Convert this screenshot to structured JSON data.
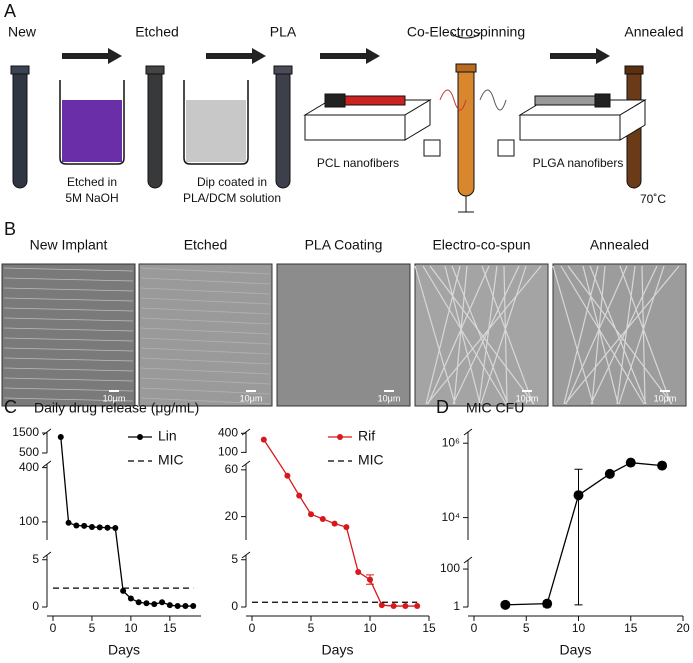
{
  "figure": {
    "panel_a": {
      "letter": "A",
      "steps": [
        "New",
        "Etched",
        "PLA",
        "Co-Electrospinning",
        "Annealed"
      ],
      "notes": [
        [
          "Etched in",
          "5M NaOH"
        ],
        [
          "Dip coated in",
          "PLA/DCM solution"
        ]
      ],
      "fibers": [
        "PCL nanofibers",
        "PLGA nanofibers"
      ],
      "temperature": "70˚C"
    },
    "panel_b": {
      "letter": "B",
      "images": [
        "New Implant",
        "Etched",
        "PLA Coating",
        "Electro-co-spun",
        "Annealed"
      ],
      "scale_bar": "10μm"
    },
    "panel_c": {
      "letter": "C",
      "title": "Daily drug release (μg/mL)"
    },
    "panel_d": {
      "letter": "D",
      "title": "MIC CFU"
    }
  },
  "chart_data": [
    {
      "type": "line",
      "x_label": "Days",
      "xlim": [
        0,
        19
      ],
      "xticks": [
        0,
        5,
        10,
        15
      ],
      "segments": [
        {
          "ylim": [
            0,
            5.5
          ],
          "yticks": [
            0,
            5
          ]
        },
        {
          "ylim": [
            0,
            420
          ],
          "yticks": [
            100,
            400
          ]
        },
        {
          "ylim": [
            500,
            1550
          ],
          "yticks": [
            500,
            1500
          ]
        }
      ],
      "series": [
        {
          "name": "Lin",
          "color": "#000000",
          "x": [
            1,
            2,
            3,
            4,
            5,
            6,
            7,
            8,
            9,
            10,
            11,
            12,
            13,
            14,
            15,
            16,
            17,
            18
          ],
          "values": [
            1300,
            95,
            80,
            78,
            72,
            70,
            68,
            66,
            1.7,
            0.9,
            0.5,
            0.4,
            0.3,
            0.5,
            0.2,
            0.1,
            0.1,
            0.1
          ]
        },
        {
          "name": "MIC",
          "color": "#000000",
          "dashed": true,
          "x": [
            0,
            18
          ],
          "values": [
            2,
            2
          ]
        }
      ]
    },
    {
      "type": "line",
      "x_label": "Days",
      "xlim": [
        0,
        15
      ],
      "xticks": [
        0,
        5,
        10,
        15
      ],
      "segments": [
        {
          "ylim": [
            0,
            5.5
          ],
          "yticks": [
            0,
            5
          ]
        },
        {
          "ylim": [
            0,
            65
          ],
          "yticks": [
            20,
            60
          ]
        },
        {
          "ylim": [
            90,
            420
          ],
          "yticks": [
            100,
            400
          ]
        }
      ],
      "series": [
        {
          "name": "Rif",
          "color": "#d7191c",
          "x": [
            1,
            3,
            4,
            5,
            6,
            7,
            8,
            9,
            10,
            11,
            12,
            13,
            14
          ],
          "values": [
            300,
            55,
            38,
            22,
            18,
            14,
            11,
            3.7,
            2.9,
            0.2,
            0.1,
            0.1,
            0.1
          ]
        },
        {
          "name": "MIC",
          "color": "#000000",
          "dashed": true,
          "x": [
            0,
            14
          ],
          "values": [
            0.5,
            0.5
          ]
        }
      ],
      "error_bars": [
        {
          "x": 10,
          "low": 2.4,
          "high": 3.4
        }
      ]
    },
    {
      "type": "line",
      "x_label": "Days",
      "xlim": [
        0,
        20
      ],
      "xticks": [
        0,
        5,
        10,
        15,
        20
      ],
      "log_scale": true,
      "segments": [
        {
          "ylim": [
            1,
            300
          ],
          "yticks": [
            1,
            100
          ]
        },
        {
          "ylim": [
            2500,
            2000000
          ],
          "yticks": [
            {
              "value": 10000,
              "label": "10⁴"
            },
            {
              "value": 1000000,
              "label": "10⁶"
            }
          ]
        }
      ],
      "series": [
        {
          "color": "#000000",
          "x": [
            3,
            7,
            10,
            13,
            15,
            18
          ],
          "values": [
            1.3,
            1.5,
            40000,
            150000,
            300000,
            250000
          ]
        }
      ],
      "error_bars": [
        {
          "x": 3,
          "low": 1,
          "high": 1.8
        },
        {
          "x": 7,
          "low": 1,
          "high": 2
        },
        {
          "x": 10,
          "low": 1.3,
          "high": 200000
        }
      ]
    }
  ]
}
